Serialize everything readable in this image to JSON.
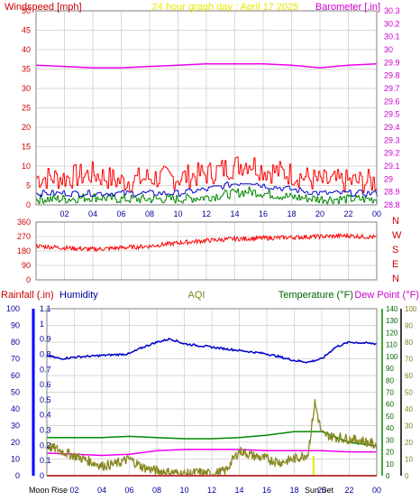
{
  "page": {
    "title": "24 hour graph day : April 17 2025",
    "colors": {
      "background": "#ffffff",
      "panel_border": "#808080",
      "grid": "#d8d8d8",
      "title": "#e8e800",
      "wind_label": "#cc0000",
      "baro_label": "#cc00cc",
      "rain_label": "#cc0000",
      "humidity_label": "#000099",
      "aqi_label": "#808020",
      "temp_label": "#006600",
      "dew_label": "#cc00cc"
    }
  },
  "chart_data": [
    {
      "type": "line",
      "name": "wind-barometer-panel",
      "left_label": "Windspeed [mph]",
      "right_label": "Barometer [.in]",
      "y_left_ticks": [
        "0",
        "5",
        "10",
        "15",
        "20",
        "25",
        "30",
        "35",
        "40",
        "45",
        "50"
      ],
      "y_left_lim": [
        0,
        50
      ],
      "y_right_ticks": [
        "28.8",
        "28.9",
        "29",
        "29.1",
        "29.2",
        "29.3",
        "29.4",
        "29.5",
        "29.6",
        "29.7",
        "29.8",
        "29.9",
        "30",
        "30.1",
        "30.2",
        "30.3"
      ],
      "y_right_lim": [
        28.8,
        30.3
      ],
      "x_ticks": [
        "02",
        "04",
        "06",
        "08",
        "10",
        "12",
        "14",
        "16",
        "18",
        "20",
        "22",
        "00"
      ],
      "x_lim": [
        0,
        24
      ],
      "grid": true,
      "series": [
        {
          "name": "Barometer",
          "color": "#ee00ee",
          "axis": "right",
          "x": [
            0,
            2,
            4,
            6,
            8,
            10,
            12,
            14,
            16,
            18,
            20,
            22,
            24
          ],
          "values": [
            29.88,
            29.87,
            29.86,
            29.86,
            29.87,
            29.88,
            29.89,
            29.89,
            29.89,
            29.88,
            29.86,
            29.88,
            29.89
          ]
        },
        {
          "name": "Wind gust",
          "color": "#ff0000",
          "axis": "left",
          "x": [
            0,
            2,
            4,
            6,
            8,
            10,
            12,
            14,
            15,
            16,
            18,
            20,
            22,
            24
          ],
          "values": [
            7,
            7,
            8,
            6,
            7,
            7,
            8,
            10,
            11,
            9,
            8,
            6,
            6,
            6
          ]
        },
        {
          "name": "Wind average",
          "color": "#0000cc",
          "axis": "left",
          "x": [
            0,
            2,
            4,
            6,
            8,
            10,
            12,
            14,
            15,
            16,
            18,
            20,
            22,
            24
          ],
          "values": [
            3,
            3,
            3,
            3,
            3,
            3,
            4,
            5.5,
            6,
            5,
            4,
            3,
            3,
            3
          ]
        },
        {
          "name": "Wind speed",
          "color": "#008800",
          "axis": "left",
          "x": [
            0,
            2,
            4,
            6,
            8,
            10,
            12,
            14,
            15,
            16,
            18,
            20,
            22,
            24
          ],
          "values": [
            1.5,
            1.5,
            2,
            1.5,
            1.5,
            1.5,
            2,
            3,
            3.5,
            3,
            2,
            1.5,
            1.5,
            1.5
          ]
        }
      ]
    },
    {
      "type": "line",
      "name": "wind-direction-panel",
      "y_left_ticks": [
        "0",
        "90",
        "180",
        "270",
        "360"
      ],
      "y_left_lim": [
        0,
        360
      ],
      "y_right_labels": [
        "N",
        "W",
        "S",
        "E",
        "N"
      ],
      "x_lim": [
        0,
        24
      ],
      "grid": true,
      "series": [
        {
          "name": "Wind direction",
          "color": "#ff0000",
          "x": [
            0,
            2,
            4,
            6,
            8,
            10,
            12,
            14,
            16,
            18,
            20,
            22,
            24
          ],
          "values": [
            210,
            200,
            190,
            200,
            210,
            230,
            245,
            255,
            260,
            265,
            270,
            275,
            265
          ]
        }
      ]
    },
    {
      "type": "line",
      "name": "rain-humidity-aqi-temp-panel",
      "left_label_rain": "Rainfall (.in)",
      "left_label_humidity": "Humidity",
      "center_label": "AQI",
      "right_label_temp": "Temperature (°F)",
      "right_label_dew": "Dew Point (°F)",
      "y_rain_ticks": [
        "0",
        "0.1",
        "0.2",
        "0.3",
        "0.4",
        "0.5",
        "0.6",
        "0.7",
        "0.8",
        "0.9",
        "1",
        "1.1"
      ],
      "y_rain_lim": [
        0,
        1.1
      ],
      "y_humidity_ticks": [
        "0",
        "10",
        "20",
        "30",
        "40",
        "50",
        "60",
        "70",
        "80",
        "90",
        "100"
      ],
      "y_humidity_lim": [
        0,
        100
      ],
      "y_temp_ticks": [
        "0",
        "10",
        "20",
        "30",
        "40",
        "50",
        "60",
        "70",
        "80",
        "90",
        "100",
        "110",
        "120",
        "130",
        "140"
      ],
      "y_temp_lim": [
        0,
        140
      ],
      "y_aqi_ticks": [
        "0",
        "10",
        "20",
        "30",
        "40",
        "50",
        "60",
        "70",
        "80",
        "90",
        "100"
      ],
      "y_aqi_lim": [
        0,
        100
      ],
      "x_ticks": [
        "02",
        "04",
        "06",
        "08",
        "10",
        "12",
        "14",
        "16",
        "18",
        "20",
        "22",
        "00"
      ],
      "x_lim": [
        0,
        24
      ],
      "annotations": [
        "Moon Rise",
        "Sun Set"
      ],
      "grid": true,
      "series": [
        {
          "name": "Humidity",
          "color": "#0000cc",
          "axis": "humidity",
          "x": [
            0,
            1,
            2,
            4,
            6,
            7,
            8,
            9,
            10,
            12,
            14,
            16,
            18,
            19,
            20,
            21,
            22,
            24
          ],
          "values": [
            72,
            70,
            71,
            72,
            73,
            77,
            80,
            82,
            79,
            77,
            75,
            73,
            69,
            68,
            70,
            77,
            80,
            79
          ]
        },
        {
          "name": "Temperature",
          "color": "#008800",
          "axis": "temp",
          "x": [
            0,
            2,
            4,
            6,
            8,
            10,
            12,
            14,
            16,
            18,
            20,
            22,
            24
          ],
          "values": [
            32,
            32,
            32,
            33,
            32,
            31,
            31,
            32,
            34,
            37,
            37,
            28,
            25
          ]
        },
        {
          "name": "Dew Point",
          "color": "#ee00ee",
          "axis": "temp",
          "x": [
            0,
            2,
            4,
            6,
            8,
            10,
            12,
            14,
            16,
            18,
            20,
            22,
            24
          ],
          "values": [
            19,
            18,
            17,
            18,
            21,
            22,
            22,
            22,
            21,
            21,
            21,
            20,
            20
          ]
        },
        {
          "name": "AQI",
          "color": "#888820",
          "axis": "aqi",
          "x": [
            0,
            1,
            2,
            3,
            4,
            5,
            6,
            7,
            8,
            9,
            10,
            11,
            12,
            13,
            14,
            15,
            16,
            17,
            18,
            19,
            19.5,
            20,
            21,
            22,
            23,
            24
          ],
          "values": [
            18,
            15,
            12,
            9,
            6,
            7,
            10,
            5,
            3,
            2,
            1,
            2,
            1,
            3,
            15,
            12,
            10,
            8,
            10,
            13,
            44,
            25,
            23,
            22,
            21,
            18
          ]
        },
        {
          "name": "Rainfall",
          "color": "#ff0000",
          "axis": "rain",
          "x": [
            0,
            24
          ],
          "values": [
            0,
            0
          ]
        }
      ]
    }
  ]
}
